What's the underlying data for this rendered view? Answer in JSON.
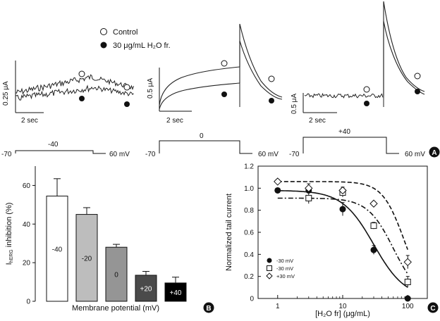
{
  "legend": {
    "control_label": "Control",
    "treated_label": "30 μg/mL H₂O fr."
  },
  "panel_a": {
    "letter": "A",
    "traces": [
      {
        "scale_label": "0.25 μA",
        "time_label": "2 sec"
      },
      {
        "scale_label": "0.5 μA",
        "time_label": "2 sec"
      },
      {
        "scale_label": "0.5 μA",
        "time_label": "2 sec"
      }
    ],
    "protocols": [
      {
        "hold": "-70",
        "step": "-40",
        "tail": "60 mV"
      },
      {
        "hold": "-70",
        "step": "0",
        "tail": "60 mV"
      },
      {
        "hold": "-70",
        "step": "+40",
        "tail": "60 mV"
      }
    ]
  },
  "panel_b": {
    "letter": "B",
    "ylabel": "IhERG inhibition (%)",
    "ylabel_main": "I",
    "ylabel_sub": "hERG",
    "ylabel_rest": " inhibition (%)",
    "xlabel": "Membrane potential (mV)",
    "y_ticks": [
      "0",
      "20",
      "40",
      "60"
    ]
  },
  "panel_c": {
    "letter": "C",
    "ylabel": "Normalized tail current",
    "xlabel": "[H₂O fr] (μg/mL)",
    "y_ticks": [
      "0",
      "0.2",
      "0.4",
      "0.6",
      "0.8",
      "1.0",
      "1.2"
    ],
    "x_ticks": [
      "1",
      "10",
      "100"
    ]
  },
  "chart_data": [
    {
      "type": "bar",
      "panel": "B",
      "categories": [
        "-40",
        "-20",
        "0",
        "+20",
        "+40"
      ],
      "values": [
        54.5,
        45,
        28,
        13.5,
        9.5
      ],
      "errors": [
        9,
        3.5,
        1.5,
        2,
        3
      ],
      "colors": [
        "#ffffff",
        "#bdbdbd",
        "#959595",
        "#4a4a4a",
        "#000000"
      ],
      "label_colors": [
        "#111111",
        "#111111",
        "#111111",
        "#ffffff",
        "#ffffff"
      ],
      "xlabel": "Membrane potential (mV)",
      "ylabel": "IhERG inhibition (%)",
      "ylim": [
        0,
        70
      ]
    },
    {
      "type": "scatter",
      "panel": "C",
      "x_scale": "log",
      "xlim": [
        0.5,
        200
      ],
      "ylim": [
        0,
        1.2
      ],
      "series": [
        {
          "name": "-30 mV",
          "marker": "filled-circle",
          "line": "solid",
          "ic50": 30,
          "hill": 1.8,
          "x": [
            1,
            3,
            10,
            30,
            100
          ],
          "y": [
            0.98,
            0.98,
            0.81,
            0.44,
            0.0
          ],
          "err": [
            0.02,
            0.02,
            0.06,
            0.04,
            0.01
          ]
        },
        {
          "name": "-30 mV",
          "marker": "open-square",
          "line": "dash-dot",
          "ic50": 60,
          "hill": 2.2,
          "x": [
            3,
            10,
            30,
            100
          ],
          "y": [
            0.91,
            0.96,
            0.66,
            0.15
          ],
          "err": [
            0.05,
            0.04,
            0.03,
            0.05
          ]
        },
        {
          "name": "+30 mV",
          "marker": "open-diamond",
          "line": "dashed",
          "ic50": 88,
          "hill": 2.6,
          "x": [
            1,
            3,
            10,
            30,
            100
          ],
          "y": [
            1.06,
            1.0,
            0.98,
            0.86,
            0.33
          ],
          "err": [
            0.02,
            0.04,
            0.03,
            0.02,
            0.06
          ]
        }
      ]
    }
  ]
}
